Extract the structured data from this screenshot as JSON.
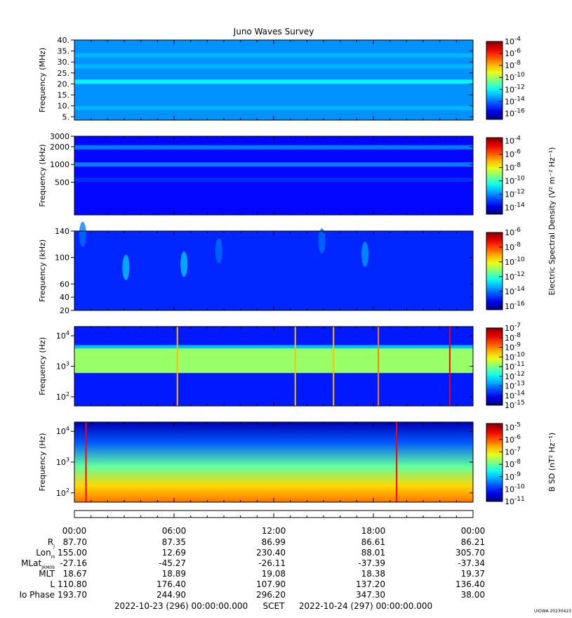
{
  "chart_data": {
    "type": "heatmap",
    "title": "Juno Waves Survey",
    "panels": [
      {
        "ylabel": "Frequency (MHz)",
        "yscale": "linear",
        "ylim": [
          3.5,
          40
        ],
        "yticks": [
          "40.",
          "35.",
          "30.",
          "25.",
          "20.",
          "15.",
          "10.",
          "5."
        ],
        "ytick_values": [
          40,
          35,
          30,
          25,
          20,
          15,
          10,
          5
        ],
        "colorbar": {
          "ticks": [
            "-4",
            "-6",
            "-8",
            "-10",
            "-12",
            "-14",
            "-16"
          ],
          "tick_exponents": [
            -4,
            -6,
            -8,
            -10,
            -12,
            -14,
            -16
          ],
          "range": [
            -17,
            -4
          ]
        },
        "features": [
          {
            "kind": "band",
            "at": 21,
            "level": -12
          },
          {
            "kind": "band",
            "at": 9,
            "level": -13
          },
          {
            "kind": "band",
            "at": 28,
            "level": -13
          },
          {
            "kind": "band",
            "at": 33,
            "level": -13
          }
        ],
        "background_level": -13.5
      },
      {
        "ylabel": "Frequency (kHz)",
        "yscale": "log",
        "ylim": [
          140,
          3000
        ],
        "yticks": [
          "3000",
          "2000",
          "1000",
          "500"
        ],
        "ytick_values": [
          3000,
          2000,
          1000,
          500
        ],
        "colorbar": {
          "ticks": [
            "-4",
            "-6",
            "-8",
            "-10",
            "-12",
            "-14"
          ],
          "tick_exponents": [
            -4,
            -6,
            -8,
            -10,
            -12,
            -14
          ],
          "range": [
            -15,
            -3.5
          ]
        },
        "features": [
          {
            "kind": "band",
            "at": 1950,
            "level": -12
          },
          {
            "kind": "band",
            "at": 1000,
            "level": -12
          },
          {
            "kind": "band",
            "at": 550,
            "level": -13
          }
        ],
        "background_level": -13.5
      },
      {
        "ylabel": "Frequency (kHz)",
        "yscale": "linear",
        "ylim": [
          20,
          140
        ],
        "yticks": [
          "140",
          "100",
          "60",
          "40",
          "20"
        ],
        "ytick_values": [
          140,
          100,
          60,
          40,
          20
        ],
        "colorbar": {
          "ticks": [
            "-6",
            "-8",
            "-10",
            "-12",
            "-14",
            "-16"
          ],
          "tick_exponents": [
            -6,
            -8,
            -10,
            -12,
            -14,
            -16
          ],
          "range": [
            -16.5,
            -6
          ]
        },
        "features": [
          {
            "kind": "burst",
            "t": 3.1,
            "f": 85,
            "level": -13
          },
          {
            "kind": "burst",
            "t": 6.6,
            "f": 90,
            "level": -13
          },
          {
            "kind": "burst",
            "t": 8.7,
            "f": 110,
            "level": -14
          },
          {
            "kind": "burst",
            "t": 14.9,
            "f": 125,
            "level": -14
          },
          {
            "kind": "burst",
            "t": 17.5,
            "f": 105,
            "level": -13.5
          },
          {
            "kind": "burst",
            "t": 0.5,
            "f": 135,
            "level": -14
          }
        ],
        "background_level": -14.8
      },
      {
        "ylabel": "Frequency (Hz)",
        "yscale": "log",
        "ylim": [
          50,
          20000
        ],
        "yticks": [
          "10^4",
          "10^3",
          "10^2"
        ],
        "ytick_values": [
          10000,
          1000,
          100
        ],
        "colorbar": {
          "ticks": [
            "-7",
            "-8",
            "-9",
            "-10",
            "-11",
            "-12",
            "-13",
            "-14",
            "-15"
          ],
          "tick_exponents": [
            -7,
            -8,
            -9,
            -10,
            -11,
            -12,
            -13,
            -14,
            -15
          ],
          "range": [
            -15,
            -7
          ]
        },
        "features": [
          {
            "kind": "envelope",
            "upper_hz": 4000,
            "lower_hz": 600,
            "level": -10.8
          },
          {
            "kind": "spike",
            "t": 18.3,
            "level": -9
          },
          {
            "kind": "spike",
            "t": 22.6,
            "level": -8
          },
          {
            "kind": "spike",
            "t": 6.2,
            "level": -9.5
          },
          {
            "kind": "spike",
            "t": 13.3,
            "level": -9.5
          },
          {
            "kind": "spike",
            "t": 15.6,
            "level": -9.5
          }
        ],
        "background_level": -13.8
      },
      {
        "ylabel": "Frequency (Hz)",
        "yscale": "log",
        "ylim": [
          50,
          20000
        ],
        "yticks": [
          "10^4",
          "10^3",
          "10^2"
        ],
        "ytick_values": [
          10000,
          1000,
          100
        ],
        "colorbar": {
          "ticks": [
            "-5",
            "-6",
            "-7",
            "-8",
            "-9",
            "-10",
            "-11"
          ],
          "tick_exponents": [
            -5,
            -6,
            -7,
            -8,
            -9,
            -10,
            -11
          ],
          "range": [
            -11,
            -4.7
          ]
        },
        "features": [
          {
            "kind": "gradient",
            "top_level": -10.3,
            "bottom_level": -6.2
          },
          {
            "kind": "spike",
            "t": 0.7,
            "level": -5.5
          },
          {
            "kind": "spike",
            "t": 19.4,
            "level": -5.5
          }
        ],
        "background_level": -9
      }
    ],
    "colorbar_labels": {
      "upper": "Electric Spectral Density (V² m⁻² Hz⁻¹)",
      "lower": "B SD (nT² Hz⁻¹)"
    },
    "x_axis": {
      "range_hours": [
        0,
        24
      ],
      "tick_hours": [
        0,
        6,
        12,
        18,
        24
      ],
      "tick_labels": [
        "00:00",
        "06:00",
        "12:00",
        "18:00",
        "00:00"
      ]
    },
    "ephemeris": {
      "row_labels": [
        "R",
        "Lon",
        "MLat",
        "MLT",
        "L",
        "Io Phase"
      ],
      "row_label_subscripts": [
        "J",
        "III",
        "JRM09",
        "",
        "",
        ""
      ],
      "rows": [
        [
          "87.70",
          "87.35",
          "86.99",
          "86.61",
          "86.21"
        ],
        [
          "155.00",
          "12.69",
          "230.40",
          "88.01",
          "305.70"
        ],
        [
          "-27.16",
          "-45.27",
          "-26.11",
          "-37.39",
          "-37.34"
        ],
        [
          "18.67",
          "18.89",
          "19.08",
          "18.38",
          "19.37"
        ],
        [
          "110.80",
          "176.40",
          "107.90",
          "137.20",
          "136.40"
        ],
        [
          "193.70",
          "244.90",
          "296.20",
          "347.30",
          "38.00"
        ]
      ]
    },
    "footer": {
      "start": "2022-10-23 (296) 00:00:00.000",
      "scet": "SCET",
      "end": "2022-10-24 (297) 00:00:00.000",
      "credit": "UIOWA 20230423"
    }
  }
}
